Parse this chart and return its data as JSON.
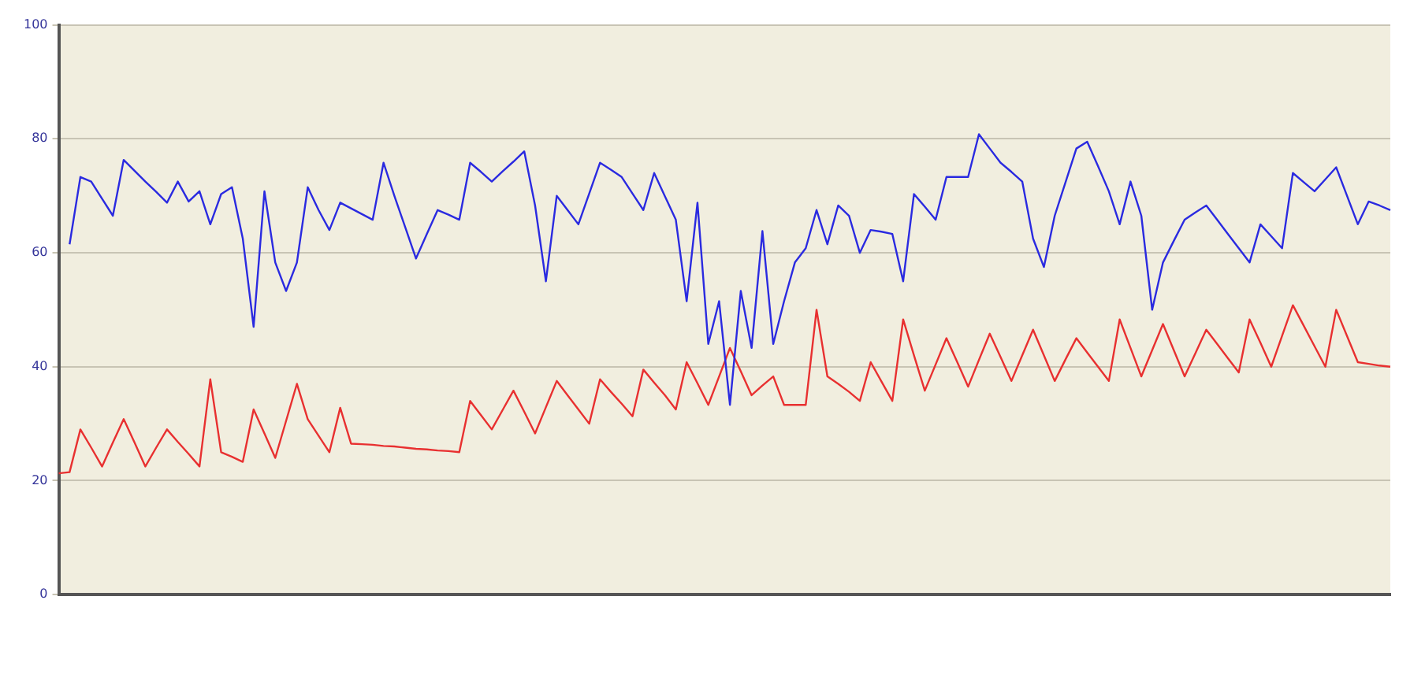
{
  "chart_data": {
    "type": "line",
    "categories": [
      null,
      null,
      null,
      null,
      null,
      null,
      null,
      null,
      null,
      null,
      null,
      null,
      null,
      null,
      null,
      null,
      null,
      null,
      null,
      null,
      null,
      null,
      null,
      null,
      null,
      null,
      null,
      null,
      null,
      null,
      null,
      null,
      null,
      null,
      null,
      null,
      null,
      null,
      null,
      null,
      null,
      null,
      null,
      null,
      null,
      null,
      null,
      null,
      null,
      null,
      null,
      null,
      null,
      null,
      null,
      null,
      null,
      null,
      null,
      null,
      null,
      null,
      null,
      null,
      null,
      null,
      null,
      null,
      null,
      null,
      null,
      null,
      null,
      null,
      null,
      null,
      null,
      null,
      null,
      null,
      null,
      null,
      null,
      null,
      null,
      null,
      null,
      null,
      null,
      null,
      null,
      null,
      null,
      null,
      null,
      null,
      null,
      null,
      null,
      null,
      null,
      null,
      null,
      null,
      null,
      null,
      null,
      null,
      null,
      null,
      null,
      null,
      null,
      null,
      null,
      null,
      null,
      null,
      null,
      null,
      null,
      null,
      null,
      null
    ],
    "ylim": [
      0,
      100
    ],
    "yticks": [
      0,
      20,
      40,
      60,
      80,
      100
    ],
    "grid": "y",
    "legend": false,
    "marker": "none",
    "line_style": "solid",
    "series": [
      {
        "color": "#2a2ae0",
        "values": [
          null,
          61.5,
          73.3,
          72.5,
          69.5,
          66.5,
          76.3,
          74.4,
          72.5,
          70.7,
          68.8,
          72.5,
          69,
          70.8,
          65,
          70.3,
          71.5,
          62.5,
          47,
          70.8,
          58.3,
          53.3,
          58.3,
          71.5,
          67.5,
          64,
          68.8,
          67.8,
          66.8,
          65.8,
          75.8,
          70,
          64.5,
          59,
          63.3,
          67.5,
          66.7,
          65.8,
          75.8,
          74.2,
          72.5,
          74.3,
          76,
          77.8,
          68.3,
          55,
          70,
          67.5,
          65,
          70.4,
          75.8,
          74.6,
          73.3,
          70.4,
          67.5,
          74,
          69.9,
          65.8,
          51.5,
          68.8,
          44,
          51.5,
          33.3,
          53.3,
          43.3,
          63.8,
          44,
          51.5,
          58.3,
          60.8,
          67.5,
          61.5,
          68.3,
          66.5,
          60,
          64,
          63.7,
          63.3,
          55,
          70.3,
          68.1,
          65.8,
          73.3,
          73.3,
          73.3,
          80.8,
          78.3,
          75.8,
          74.2,
          72.5,
          62.5,
          57.5,
          66.5,
          72.4,
          78.3,
          79.5,
          75.2,
          70.8,
          65,
          72.5,
          66.5,
          50,
          58.3,
          62.1,
          65.8,
          67.1,
          68.3,
          65.8,
          63.3,
          60.8,
          58.3,
          65,
          62.9,
          60.8,
          74,
          72.4,
          70.8,
          72.9,
          75,
          70,
          65,
          69,
          68.3,
          67.5
        ]
      },
      {
        "color": "#e83030",
        "values": [
          21.3,
          21.5,
          29,
          25.8,
          22.5,
          26.7,
          30.8,
          26.7,
          22.5,
          25.8,
          29,
          26.8,
          24.7,
          22.5,
          37.8,
          25,
          24.2,
          23.3,
          32.5,
          28.3,
          24,
          30.5,
          37,
          30.8,
          27.9,
          25,
          32.8,
          26.5,
          26.4,
          26.3,
          26.1,
          26,
          25.8,
          25.6,
          25.5,
          25.3,
          25.2,
          25,
          34,
          31.5,
          29,
          32.4,
          35.8,
          32.1,
          28.3,
          32.9,
          37.5,
          35,
          32.5,
          30,
          37.8,
          35.6,
          33.5,
          31.3,
          39.5,
          37.2,
          35,
          32.5,
          40.8,
          37.1,
          33.3,
          38.3,
          43.3,
          39.2,
          35,
          36.7,
          38.3,
          33.3,
          33.3,
          33.3,
          50,
          38.3,
          37,
          35.6,
          34,
          40.8,
          37.4,
          34,
          48.3,
          42,
          35.8,
          40.4,
          45,
          40.8,
          36.5,
          41.2,
          45.8,
          41.7,
          37.5,
          42,
          46.5,
          42,
          37.5,
          41.3,
          45,
          42.5,
          40,
          37.5,
          48.3,
          43.3,
          38.3,
          42.9,
          47.5,
          42.9,
          38.3,
          42.4,
          46.5,
          44,
          41.5,
          39,
          48.3,
          44.2,
          40,
          45.4,
          50.8,
          47.2,
          43.6,
          40,
          50,
          45.4,
          40.8,
          40.5,
          40.2,
          40
        ]
      }
    ]
  }
}
